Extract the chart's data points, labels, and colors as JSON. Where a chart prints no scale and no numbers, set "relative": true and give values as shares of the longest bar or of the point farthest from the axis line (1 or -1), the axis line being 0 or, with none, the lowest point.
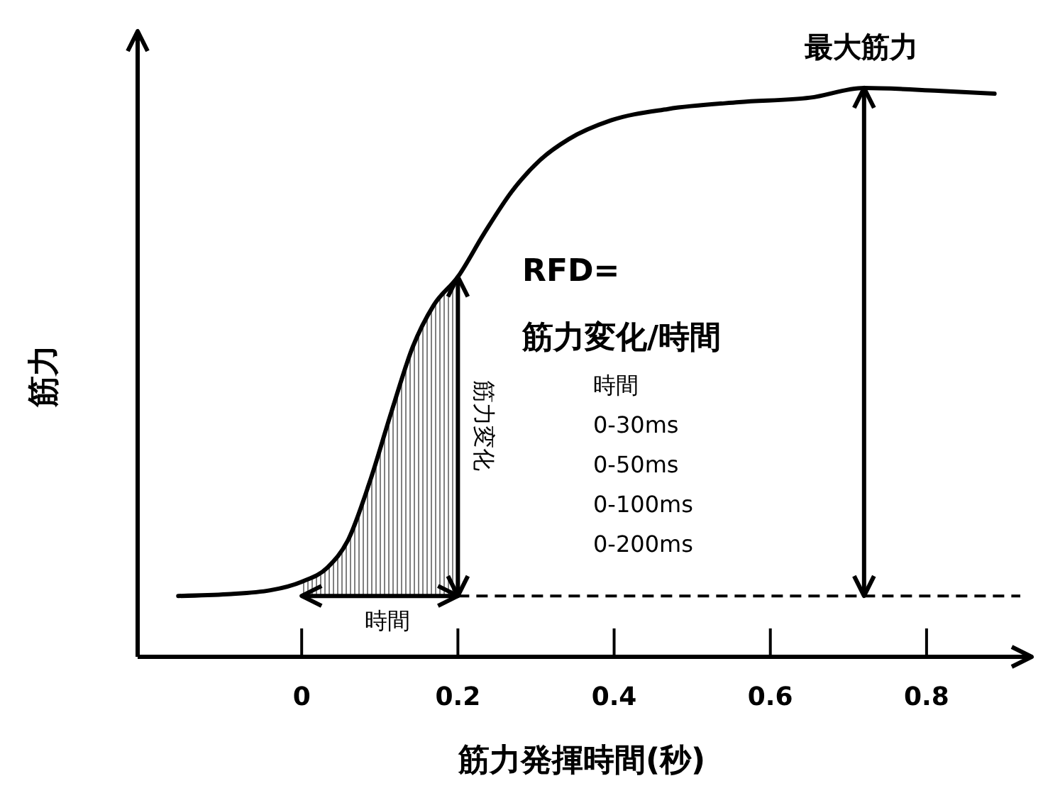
{
  "chart_data": {
    "type": "line",
    "relative": true,
    "xlabel": "筋力発揮時間(秒)",
    "ylabel": "筋力",
    "xlim": [
      -0.21,
      0.92
    ],
    "xticks": [
      0,
      0.2,
      0.4,
      0.6,
      0.8
    ],
    "series": [
      {
        "color": "#000000",
        "x": [
          -0.158,
          -0.095,
          -0.04,
          0,
          0.033,
          0.06,
          0.087,
          0.115,
          0.142,
          0.169,
          0.2,
          0.233,
          0.269,
          0.305,
          0.342,
          0.396,
          0.469,
          0.56,
          0.651,
          0.72,
          0.815,
          0.887
        ],
        "values": [
          0.107,
          0.11,
          0.117,
          0.132,
          0.157,
          0.207,
          0.307,
          0.431,
          0.544,
          0.618,
          0.668,
          0.743,
          0.818,
          0.873,
          0.91,
          0.943,
          0.963,
          0.975,
          0.983,
          1,
          0.995,
          0.99
        ]
      }
    ],
    "ref_lines": [
      {
        "axis": "y",
        "value": 0.107,
        "line_style": "dashed",
        "color": "#000000"
      },
      {
        "axis": "x",
        "value": 0.72,
        "color": "#000000"
      }
    ],
    "bands": [
      {
        "axis": "x",
        "from": 0,
        "to": 0.2,
        "color": "#808080"
      }
    ],
    "annotations": [
      "最大筋力",
      "RFD=",
      "筋力変化/時間",
      "時間",
      "0-30ms",
      "0-50ms",
      "0-100ms",
      "0-200ms",
      "筋力変化",
      "時間"
    ],
    "marker": "none",
    "line_style": "solid",
    "grid": false
  }
}
